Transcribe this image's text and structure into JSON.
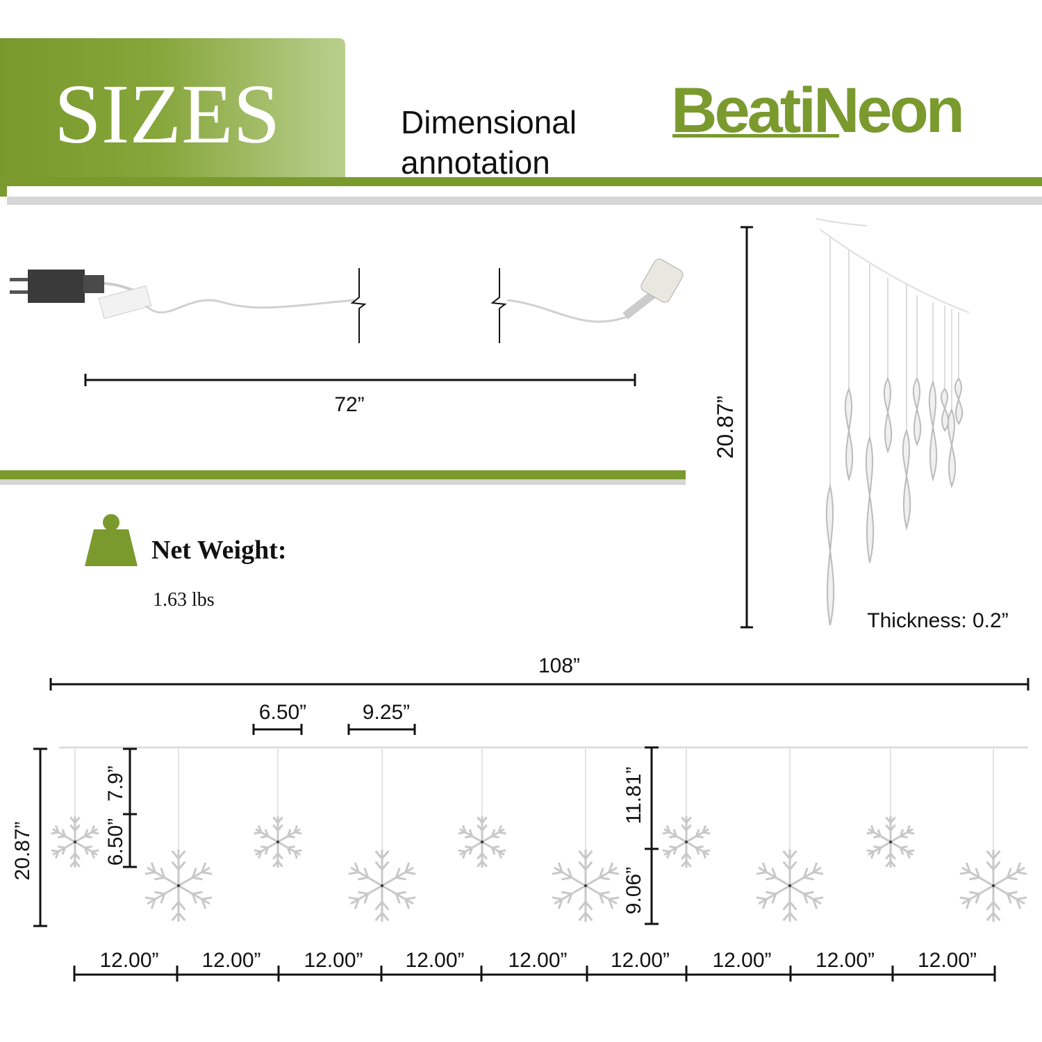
{
  "header": {
    "badge": "SIZES",
    "subtitle_line1": "Dimensional",
    "subtitle_line2": "annotation",
    "brand": "BeatiNeon"
  },
  "cable": {
    "length": "72”"
  },
  "icicle": {
    "height": "20.87”",
    "thickness": "Thickness: 0.2”"
  },
  "weight": {
    "label": "Net Weight:",
    "value": "1.63 lbs"
  },
  "curtain": {
    "width": "108”",
    "snowflake_width": "6.50”",
    "spacing": "9.25”",
    "height": "20.87”",
    "drop_top": "7.9”",
    "drop_bottom": "6.50”",
    "drop_long": "11.81”",
    "drop_long_rest": "9.06”",
    "segments": [
      "12.00”",
      "12.00”",
      "12.00”",
      "12.00”",
      "12.00”",
      "12.00”",
      "12.00”",
      "12.00”",
      "12.00”"
    ]
  }
}
